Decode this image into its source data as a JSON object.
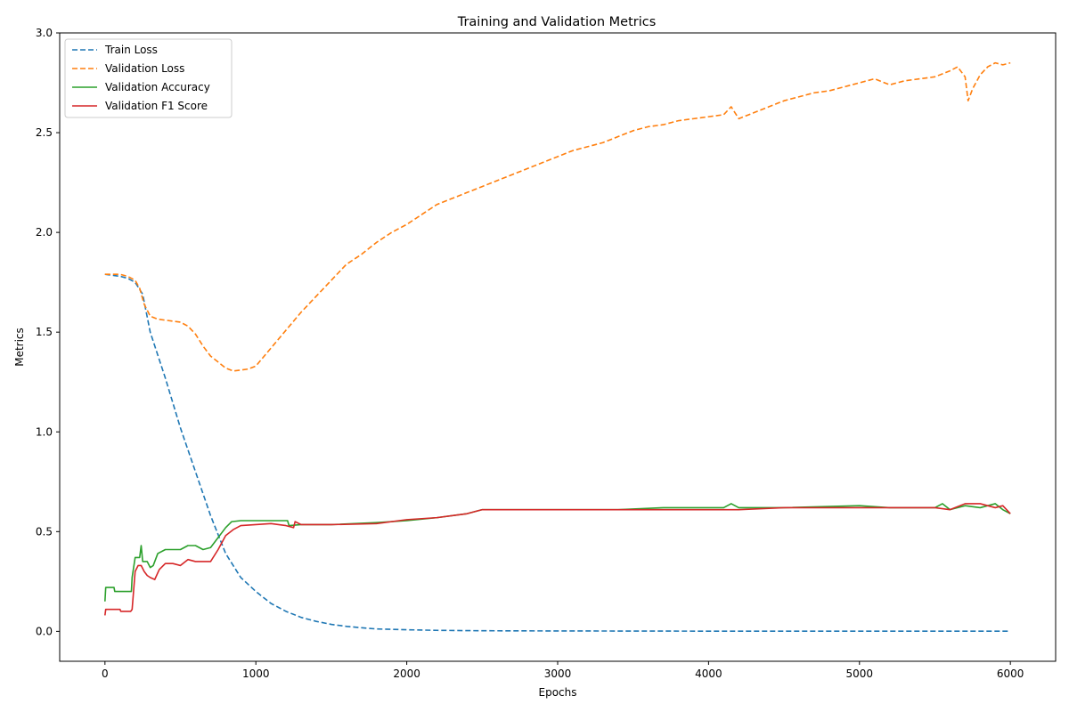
{
  "colors": {
    "train_loss": "#1f77b4",
    "val_loss": "#ff7f0e",
    "val_accuracy": "#2ca02c",
    "val_f1": "#d62728"
  },
  "chart_data": {
    "type": "line",
    "title": "Training and Validation Metrics",
    "xlabel": "Epochs",
    "ylabel": "Metrics",
    "xlim": [
      -300,
      6300
    ],
    "ylim": [
      -0.15,
      3.0
    ],
    "xticks": [
      0,
      1000,
      2000,
      3000,
      4000,
      5000,
      6000
    ],
    "xtick_labels": [
      "0",
      "1000",
      "2000",
      "3000",
      "4000",
      "5000",
      "6000"
    ],
    "yticks": [
      0.0,
      0.5,
      1.0,
      1.5,
      2.0,
      2.5,
      3.0
    ],
    "ytick_labels": [
      "0.0",
      "0.5",
      "1.0",
      "1.5",
      "2.0",
      "2.5",
      "3.0"
    ],
    "grid": false,
    "legend_position": "top-left",
    "series": [
      {
        "name": "Train Loss",
        "style": "dashed",
        "color": "#1f77b4",
        "x": [
          0,
          100,
          150,
          200,
          250,
          300,
          400,
          500,
          600,
          700,
          800,
          900,
          1000,
          1100,
          1200,
          1300,
          1400,
          1500,
          1600,
          1700,
          1800,
          2000,
          2200,
          2500,
          3000,
          4000,
          5000,
          6000
        ],
        "y": [
          1.79,
          1.78,
          1.77,
          1.75,
          1.69,
          1.5,
          1.27,
          1.02,
          0.8,
          0.58,
          0.39,
          0.27,
          0.2,
          0.14,
          0.1,
          0.07,
          0.05,
          0.035,
          0.025,
          0.018,
          0.012,
          0.008,
          0.005,
          0.003,
          0.002,
          0.001,
          0.001,
          0.001
        ]
      },
      {
        "name": "Validation Loss",
        "style": "dashed",
        "color": "#ff7f0e",
        "x": [
          0,
          100,
          150,
          200,
          230,
          260,
          300,
          350,
          400,
          500,
          550,
          600,
          650,
          700,
          750,
          800,
          850,
          900,
          950,
          1000,
          1100,
          1200,
          1300,
          1400,
          1500,
          1600,
          1700,
          1800,
          1900,
          2000,
          2100,
          2200,
          2300,
          2400,
          2500,
          2600,
          2700,
          2800,
          2900,
          3000,
          3100,
          3200,
          3300,
          3400,
          3500,
          3600,
          3700,
          3800,
          3900,
          4000,
          4100,
          4150,
          4200,
          4300,
          4400,
          4500,
          4600,
          4700,
          4800,
          4900,
          5000,
          5100,
          5200,
          5300,
          5400,
          5500,
          5600,
          5650,
          5700,
          5720,
          5750,
          5800,
          5850,
          5900,
          5950,
          6000
        ],
        "y": [
          1.79,
          1.79,
          1.78,
          1.76,
          1.72,
          1.64,
          1.58,
          1.565,
          1.56,
          1.55,
          1.53,
          1.49,
          1.43,
          1.38,
          1.35,
          1.32,
          1.305,
          1.31,
          1.315,
          1.33,
          1.42,
          1.51,
          1.6,
          1.68,
          1.76,
          1.84,
          1.89,
          1.95,
          2.0,
          2.04,
          2.09,
          2.14,
          2.17,
          2.2,
          2.23,
          2.26,
          2.29,
          2.32,
          2.35,
          2.38,
          2.41,
          2.43,
          2.45,
          2.48,
          2.51,
          2.53,
          2.54,
          2.56,
          2.57,
          2.58,
          2.59,
          2.63,
          2.57,
          2.6,
          2.63,
          2.66,
          2.68,
          2.7,
          2.71,
          2.73,
          2.75,
          2.77,
          2.74,
          2.76,
          2.77,
          2.78,
          2.81,
          2.83,
          2.78,
          2.66,
          2.72,
          2.79,
          2.83,
          2.85,
          2.84,
          2.85
        ]
      },
      {
        "name": "Validation Accuracy",
        "style": "solid",
        "color": "#2ca02c",
        "x": [
          0,
          5,
          60,
          65,
          175,
          180,
          200,
          230,
          240,
          250,
          280,
          300,
          320,
          350,
          400,
          450,
          500,
          550,
          600,
          650,
          700,
          740,
          780,
          800,
          840,
          900,
          1000,
          1050,
          1100,
          1150,
          1200,
          1210,
          1220,
          1300,
          1500,
          1800,
          2000,
          2200,
          2400,
          2500,
          2700,
          2900,
          3100,
          3400,
          3700,
          3900,
          4100,
          4150,
          4200,
          4500,
          5000,
          5200,
          5500,
          5550,
          5600,
          5700,
          5800,
          5900,
          5950,
          6000
        ],
        "y": [
          0.15,
          0.22,
          0.22,
          0.2,
          0.2,
          0.27,
          0.37,
          0.37,
          0.43,
          0.35,
          0.35,
          0.32,
          0.33,
          0.39,
          0.41,
          0.41,
          0.41,
          0.43,
          0.43,
          0.41,
          0.42,
          0.46,
          0.5,
          0.52,
          0.55,
          0.555,
          0.555,
          0.555,
          0.555,
          0.555,
          0.555,
          0.555,
          0.53,
          0.535,
          0.535,
          0.545,
          0.555,
          0.57,
          0.59,
          0.61,
          0.61,
          0.61,
          0.61,
          0.61,
          0.62,
          0.62,
          0.62,
          0.64,
          0.62,
          0.62,
          0.63,
          0.62,
          0.62,
          0.64,
          0.61,
          0.63,
          0.62,
          0.64,
          0.61,
          0.59
        ]
      },
      {
        "name": "Validation F1 Score",
        "style": "solid",
        "color": "#d62728",
        "x": [
          0,
          5,
          100,
          105,
          170,
          180,
          200,
          220,
          240,
          260,
          280,
          300,
          330,
          360,
          400,
          450,
          500,
          550,
          600,
          650,
          700,
          750,
          800,
          850,
          900,
          1000,
          1100,
          1200,
          1250,
          1260,
          1300,
          1500,
          1800,
          2000,
          2200,
          2400,
          2500,
          2700,
          2900,
          3100,
          3400,
          3700,
          4000,
          4200,
          4500,
          5000,
          5200,
          5500,
          5600,
          5700,
          5800,
          5900,
          5950,
          6000
        ],
        "y": [
          0.08,
          0.11,
          0.11,
          0.1,
          0.1,
          0.11,
          0.3,
          0.33,
          0.33,
          0.3,
          0.28,
          0.27,
          0.26,
          0.31,
          0.34,
          0.34,
          0.33,
          0.36,
          0.35,
          0.35,
          0.35,
          0.41,
          0.48,
          0.51,
          0.53,
          0.535,
          0.54,
          0.53,
          0.52,
          0.55,
          0.535,
          0.535,
          0.54,
          0.56,
          0.57,
          0.59,
          0.61,
          0.61,
          0.61,
          0.61,
          0.61,
          0.61,
          0.61,
          0.61,
          0.62,
          0.62,
          0.62,
          0.62,
          0.61,
          0.64,
          0.64,
          0.62,
          0.63,
          0.59
        ]
      }
    ]
  }
}
